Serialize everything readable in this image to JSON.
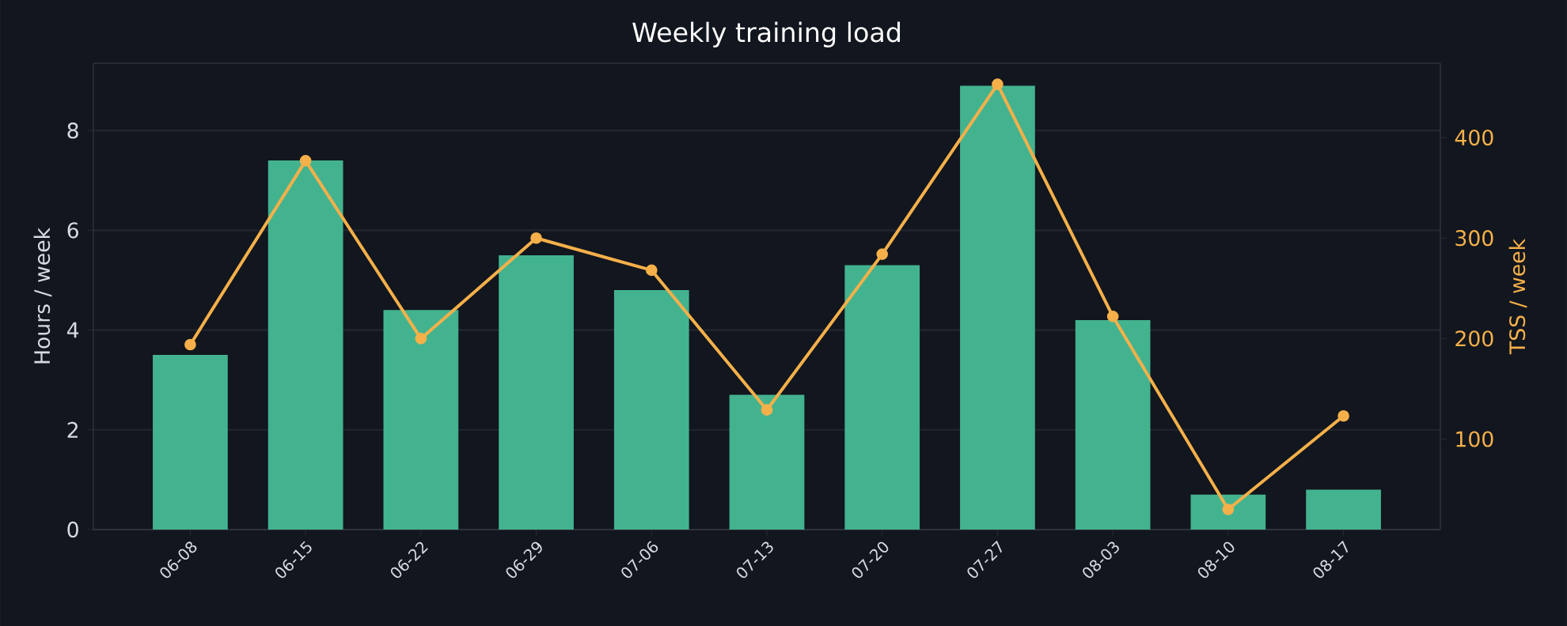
{
  "chart_data": {
    "type": "bar",
    "title": "Weekly training load",
    "ylabel": "Hours / week",
    "y2label": "TSS / week",
    "categories": [
      "06-08",
      "06-15",
      "06-22",
      "06-29",
      "07-06",
      "07-13",
      "07-20",
      "07-27",
      "08-03",
      "08-10",
      "08-17"
    ],
    "series": [
      {
        "color": "#43b38f",
        "values": [
          3.5,
          7.4,
          4.4,
          5.5,
          4.8,
          2.7,
          5.3,
          8.9,
          4.2,
          0.7,
          0.8
        ]
      },
      {
        "type": "line",
        "axis": "y2",
        "color": "#f5b04a",
        "marker": "circle",
        "values": [
          194,
          377,
          200,
          300,
          268,
          129,
          284,
          453,
          222,
          30,
          123
        ]
      }
    ],
    "ylim": [
      0,
      9.35
    ],
    "yticks": [
      0,
      2,
      4,
      6,
      8
    ],
    "y2lim": [
      10,
      474
    ],
    "y2ticks": [
      100,
      200,
      300,
      400
    ],
    "grid": "y"
  }
}
